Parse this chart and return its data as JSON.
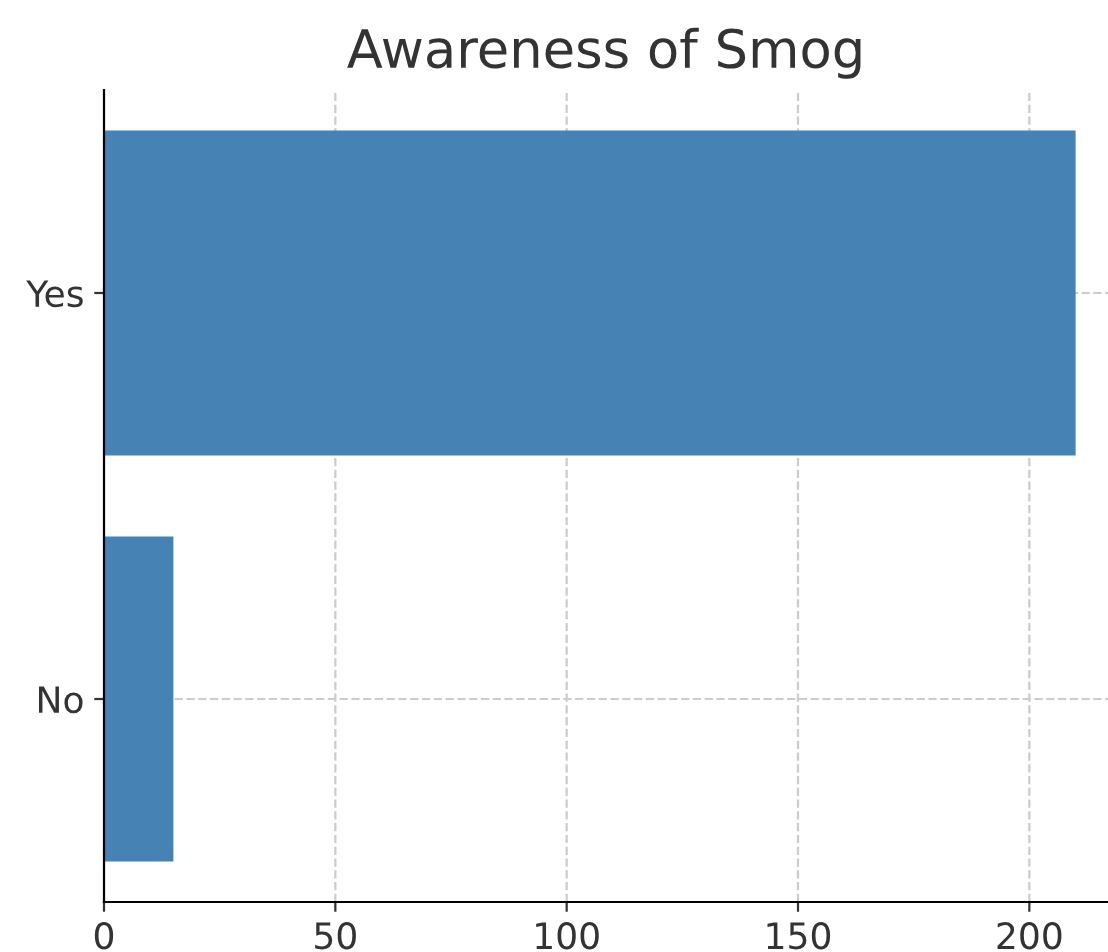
{
  "chart_data": {
    "type": "bar",
    "title": "Awareness of Smog",
    "orientation": "horizontal",
    "categories": [
      "Yes",
      "No"
    ],
    "values": [
      210,
      15
    ],
    "color": "#4682b4",
    "xlim": [
      0,
      217
    ],
    "xticks": [
      0,
      50,
      100,
      150,
      200
    ],
    "grid": true,
    "line_style": "dashed"
  }
}
